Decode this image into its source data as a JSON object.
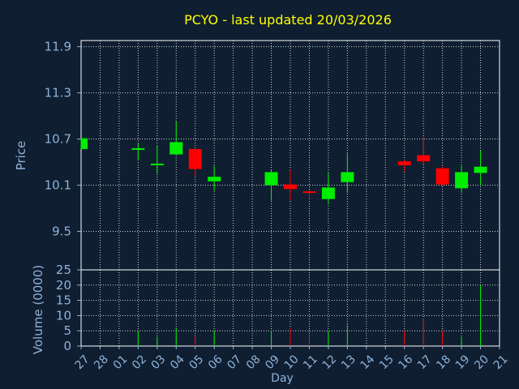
{
  "colors": {
    "background": "#0f1e31",
    "plot_border": "#ffffff",
    "grid": "#ffffff",
    "title": "#ffff00",
    "axis_text": "#8fb3d9",
    "up": "#00ee00",
    "down": "#ff0000"
  },
  "chart_data": {
    "type": "candlestick",
    "title": "PCYO - last updated 20/03/2026",
    "xlabel": "Day",
    "ylabel_price": "Price",
    "ylabel_volume": "Volume (0000)",
    "price_ylim": [
      9.0,
      11.98
    ],
    "price_ticks": [
      {
        "value": 9.5,
        "label": "9.5"
      },
      {
        "value": 10.1,
        "label": "10.1"
      },
      {
        "value": 10.7,
        "label": "10.7"
      },
      {
        "value": 11.3,
        "label": "11.3"
      },
      {
        "value": 11.9,
        "label": "11.9"
      }
    ],
    "volume_ylim": [
      0,
      25
    ],
    "volume_ticks": [
      0,
      5,
      10,
      15,
      20,
      25
    ],
    "grid": true,
    "x_ticks": [
      "27",
      "28",
      "01",
      "02",
      "03",
      "04",
      "05",
      "06",
      "07",
      "08",
      "09",
      "10",
      "11",
      "12",
      "13",
      "14",
      "15",
      "16",
      "17",
      "18",
      "19",
      "20",
      "21"
    ],
    "candles": [
      {
        "x": 0,
        "open": 10.57,
        "close": 10.71,
        "high": 10.71,
        "low": 10.57,
        "volume": 0
      },
      {
        "x": 3,
        "open": 10.57,
        "close": 10.57,
        "high": 10.65,
        "low": 10.42,
        "volume": 5
      },
      {
        "x": 4,
        "open": 10.35,
        "close": 10.37,
        "high": 10.62,
        "low": 10.25,
        "volume": 3
      },
      {
        "x": 5,
        "open": 10.5,
        "close": 10.66,
        "high": 10.93,
        "low": 10.5,
        "volume": 6
      },
      {
        "x": 6,
        "open": 10.57,
        "close": 10.31,
        "high": 10.57,
        "low": 10.22,
        "volume": 3
      },
      {
        "x": 7,
        "open": 10.15,
        "close": 10.21,
        "high": 10.35,
        "low": 10.03,
        "volume": 5
      },
      {
        "x": 10,
        "open": 10.1,
        "close": 10.27,
        "high": 10.3,
        "low": 9.9,
        "volume": 5
      },
      {
        "x": 11,
        "open": 10.11,
        "close": 10.05,
        "high": 10.3,
        "low": 9.9,
        "volume": 6
      },
      {
        "x": 12,
        "open": 10.01,
        "close": 10.0,
        "high": 10.04,
        "low": 9.92,
        "volume": 3
      },
      {
        "x": 13,
        "open": 9.92,
        "close": 10.07,
        "high": 10.27,
        "low": 9.85,
        "volume": 5
      },
      {
        "x": 14,
        "open": 10.14,
        "close": 10.27,
        "high": 10.51,
        "low": 10.0,
        "volume": 7
      },
      {
        "x": 17,
        "open": 10.41,
        "close": 10.36,
        "high": 10.43,
        "low": 10.28,
        "volume": 5
      },
      {
        "x": 18,
        "open": 10.49,
        "close": 10.41,
        "high": 10.73,
        "low": 10.37,
        "volume": 9
      },
      {
        "x": 19,
        "open": 10.32,
        "close": 10.11,
        "high": 10.34,
        "low": 10.09,
        "volume": 5
      },
      {
        "x": 20,
        "open": 10.06,
        "close": 10.27,
        "high": 10.35,
        "low": 10.0,
        "volume": 3
      },
      {
        "x": 21,
        "open": 10.26,
        "close": 10.34,
        "high": 10.55,
        "low": 10.1,
        "volume": 20
      }
    ]
  }
}
